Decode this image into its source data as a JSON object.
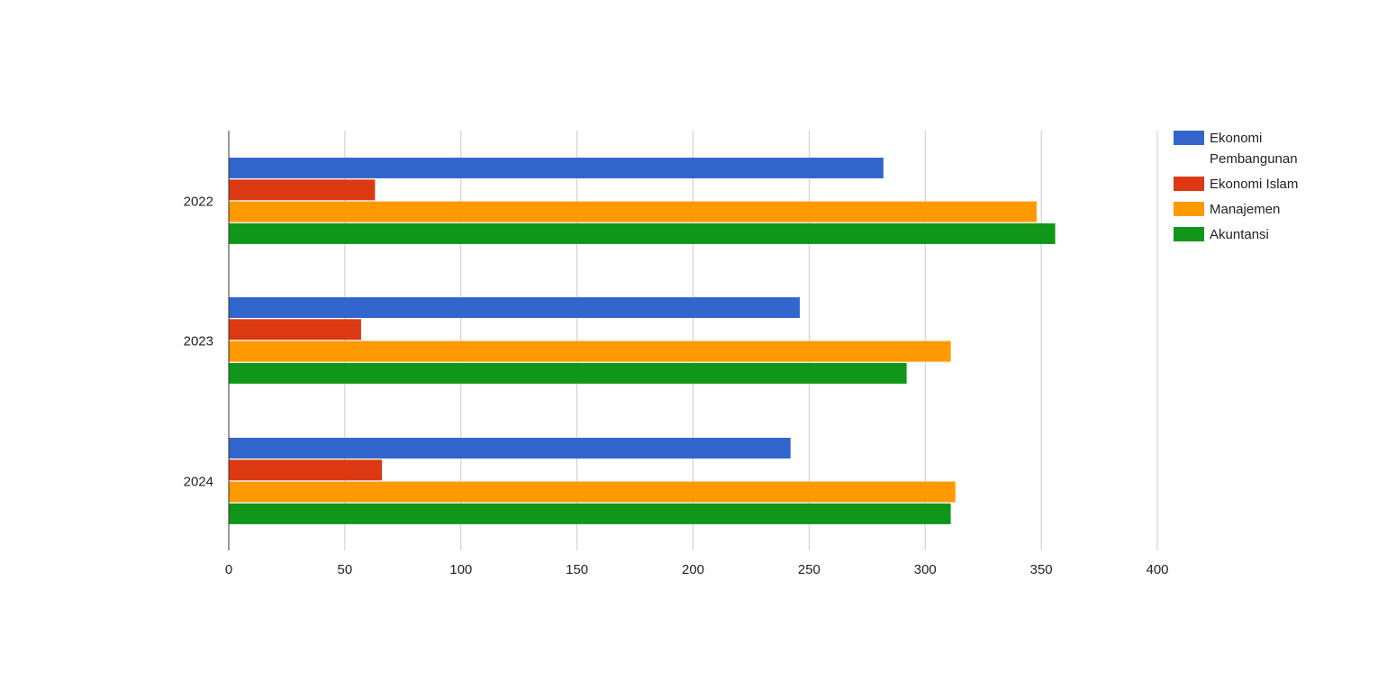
{
  "chart_data": {
    "type": "bar",
    "orientation": "horizontal",
    "title": "",
    "xlabel": "",
    "ylabel": "",
    "categories": [
      "2022",
      "2023",
      "2024"
    ],
    "series": [
      {
        "name": "Ekonomi Pembangunan",
        "color": "#3366cc",
        "values": [
          282,
          246,
          242
        ]
      },
      {
        "name": "Ekonomi Islam",
        "color": "#dc3912",
        "values": [
          63,
          57,
          66
        ]
      },
      {
        "name": "Manajemen",
        "color": "#ff9900",
        "values": [
          348,
          311,
          313
        ]
      },
      {
        "name": "Akuntansi",
        "color": "#109618",
        "values": [
          356,
          292,
          311
        ]
      }
    ],
    "xlim": [
      0,
      400
    ],
    "xticks": [
      "0",
      "50",
      "100",
      "150",
      "200",
      "250",
      "300",
      "350",
      "400"
    ],
    "grid": true,
    "legend_position": "right"
  }
}
